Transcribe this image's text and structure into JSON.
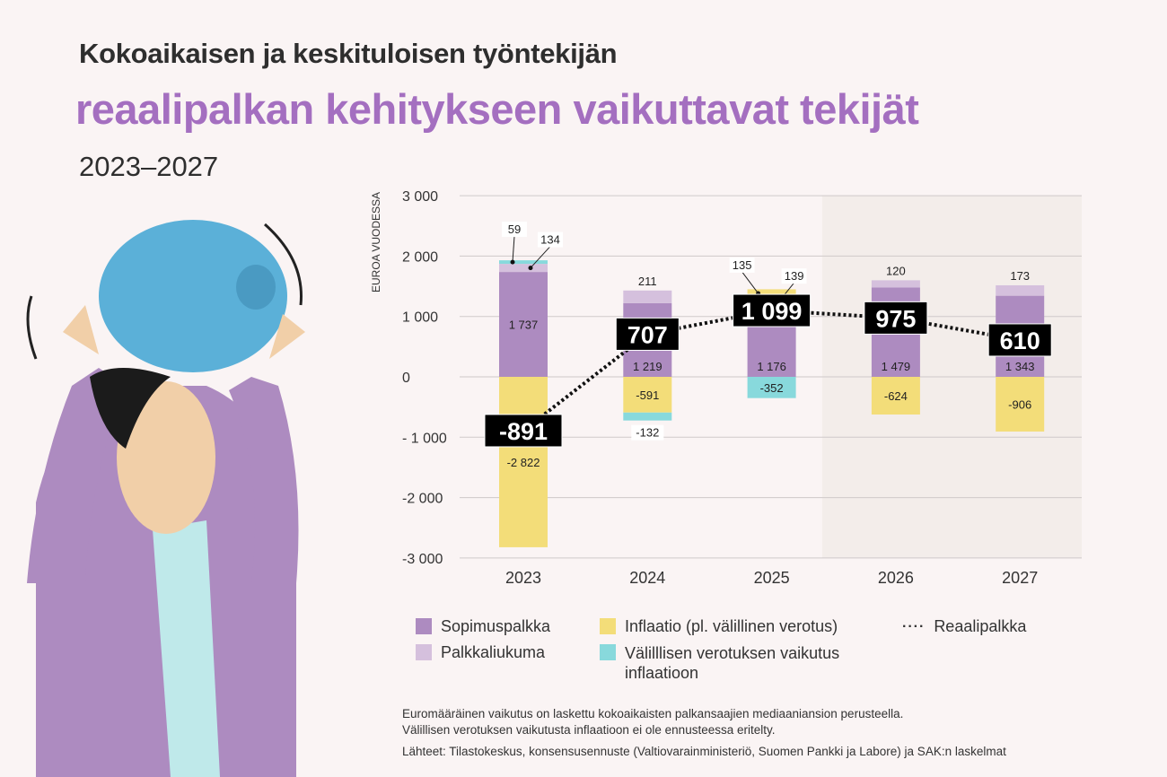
{
  "header": {
    "line1": "Kokoaikaisen ja keskituloisen työntekijän",
    "line2": "reaalipalkan kehitykseen vaikuttavat tekijät",
    "period": "2023–2027"
  },
  "chart_data": {
    "type": "bar",
    "stacked": true,
    "ylabel": "EUROA VUODESSA",
    "ylim": [
      -3000,
      3000
    ],
    "yticks": [
      3000,
      2000,
      1000,
      0,
      -1000,
      -2000,
      -3000
    ],
    "ytick_labels": [
      "3 000",
      "2 000",
      "1 000",
      "0",
      "- 1 000",
      "-2 000",
      "-3 000"
    ],
    "grid": true,
    "categories": [
      "2023",
      "2024",
      "2025",
      "2026",
      "2027"
    ],
    "forecast_shaded_from": "2026",
    "series": [
      {
        "name": "Sopimuspalkka",
        "color": "#ad8bc0",
        "values": [
          1737,
          1219,
          1176,
          1479,
          1343
        ],
        "labels": [
          "1 737",
          "1 219",
          "1 176",
          "1 479",
          "1 343"
        ]
      },
      {
        "name": "Palkkaliukuma",
        "color": "#d5c0dd",
        "values": [
          134,
          211,
          139,
          120,
          173
        ],
        "labels": [
          "134",
          "211",
          "139",
          "120",
          "173"
        ]
      },
      {
        "name": "Inflaatio (pl. välillinen verotus)",
        "color": "#f3dd79",
        "values": [
          -2822,
          -591,
          135,
          -624,
          -906
        ],
        "labels": [
          "-2 822",
          "-591",
          "135",
          "-624",
          "-906"
        ]
      },
      {
        "name": "Välilllisen verotuksen vaikutus inflaatioon",
        "color": "#88d9dc",
        "values": [
          59,
          -132,
          -352,
          null,
          null
        ],
        "labels": [
          "59",
          "-132",
          "-352",
          null,
          null
        ]
      }
    ],
    "line": {
      "name": "Reaalipalkka",
      "style": "dotted",
      "color": "#111111",
      "values": [
        -891,
        707,
        1099,
        975,
        610
      ],
      "labels": [
        "-891",
        "707",
        "1 099",
        "975",
        "610"
      ]
    }
  },
  "legend": {
    "sopimus": "Sopimuspalkka",
    "liukuma": "Palkkaliukuma",
    "inflaatio": "Inflaatio (pl. välillinen verotus)",
    "valillinen": "Välilllisen verotuksen vaikutus inflaatioon",
    "reaali": "Reaalipalkka"
  },
  "notes": {
    "line1": "Euromääräinen vaikutus on laskettu kokoaikaisten palkansaajien mediaaniansion perusteella.",
    "line2": "Välillisen verotuksen vaikutusta inflaatioon ei ole ennusteessa eritelty.",
    "sources": "Lähteet: Tilastokeskus, konsensusennuste (Valtiovarainministeriö, Suomen Pankki ja Labore) ja SAK:n laskelmat"
  }
}
